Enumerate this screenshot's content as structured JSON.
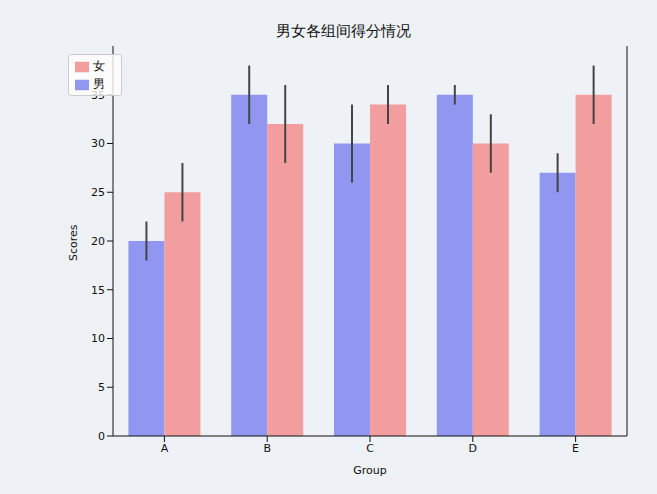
{
  "chart_data": {
    "type": "bar",
    "title": "男女各组间得分情况",
    "x_label": "Group",
    "y_label": "Scores",
    "categories": [
      "A",
      "B",
      "C",
      "D",
      "E"
    ],
    "series": [
      {
        "name": "男",
        "color": "#9197f0",
        "values": [
          20,
          35,
          30,
          35,
          27
        ],
        "errors": [
          2,
          3,
          4,
          1,
          2
        ]
      },
      {
        "name": "女",
        "color": "#f29e9e",
        "values": [
          25,
          32,
          34,
          30,
          35
        ],
        "errors": [
          3,
          4,
          2,
          3,
          3
        ]
      }
    ],
    "ylim": [
      0,
      40
    ],
    "yticks": [
      0,
      5,
      10,
      15,
      20,
      25,
      30,
      35
    ],
    "legend": "upper left",
    "grid": false
  }
}
